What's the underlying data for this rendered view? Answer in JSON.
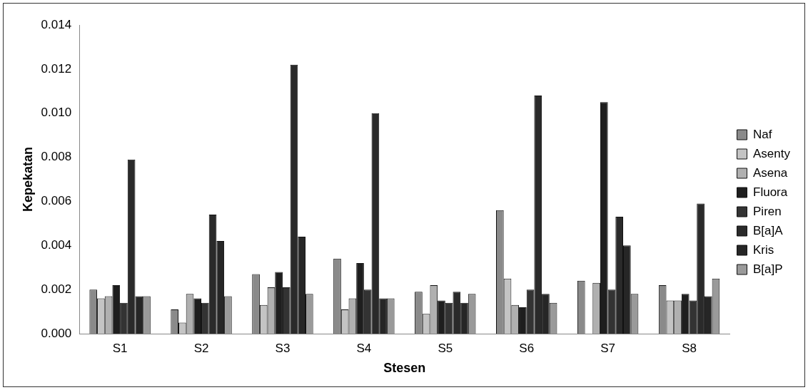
{
  "chart_data": {
    "type": "bar",
    "xlabel": "Stesen",
    "ylabel": "Kepekatan",
    "categories": [
      "S1",
      "S2",
      "S3",
      "S4",
      "S5",
      "S6",
      "S7",
      "S8"
    ],
    "ylim": [
      0,
      0.014
    ],
    "yticks": [
      {
        "value": 0,
        "label": "0.000"
      },
      {
        "value": 0.002,
        "label": "0.002"
      },
      {
        "value": 0.004,
        "label": "0.004"
      },
      {
        "value": 0.006,
        "label": "0.006"
      },
      {
        "value": 0.008,
        "label": "0.008"
      },
      {
        "value": 0.01,
        "label": "0.010"
      },
      {
        "value": 0.012,
        "label": "0.012"
      },
      {
        "value": 0.014,
        "label": "0.014"
      }
    ],
    "legend": "right",
    "grid": false,
    "series": [
      {
        "name": "Naf",
        "color": "#8a8a8a",
        "values": [
          0.002,
          0.0011,
          0.0027,
          0.0034,
          0.0019,
          0.0056,
          0.0024,
          0.0022
        ]
      },
      {
        "name": "Asenty",
        "color": "#c4c4c4",
        "values": [
          0.0016,
          0.0005,
          0.0013,
          0.0011,
          0.0009,
          0.0025,
          0,
          0.0015
        ]
      },
      {
        "name": "Asena",
        "color": "#b0b0b0",
        "values": [
          0.0017,
          0.0018,
          0.0021,
          0.0016,
          0.0022,
          0.0013,
          0.0023,
          0.0015
        ]
      },
      {
        "name": "Fluora",
        "color": "#1e1e1e",
        "values": [
          0.0022,
          0.0016,
          0.0028,
          0.0032,
          0.0015,
          0.0012,
          0.0105,
          0.0018
        ]
      },
      {
        "name": "Piren",
        "color": "#333333",
        "values": [
          0.0014,
          0.0014,
          0.0021,
          0.002,
          0.0014,
          0.002,
          0.002,
          0.0015
        ]
      },
      {
        "name": "B[a]A",
        "color": "#2a2a2a",
        "values": [
          0.0079,
          0.0054,
          0.0122,
          0.01,
          0.0019,
          0.0108,
          0.0053,
          0.0059
        ]
      },
      {
        "name": "Kris",
        "color": "#262626",
        "values": [
          0.0017,
          0.0042,
          0.0044,
          0.0016,
          0.0014,
          0.0018,
          0.004,
          0.0017
        ]
      },
      {
        "name": "B[a]P",
        "color": "#9a9a9a",
        "values": [
          0.0017,
          0.0017,
          0.0018,
          0.0016,
          0.0018,
          0.0014,
          0.0018,
          0.0025
        ]
      }
    ]
  }
}
